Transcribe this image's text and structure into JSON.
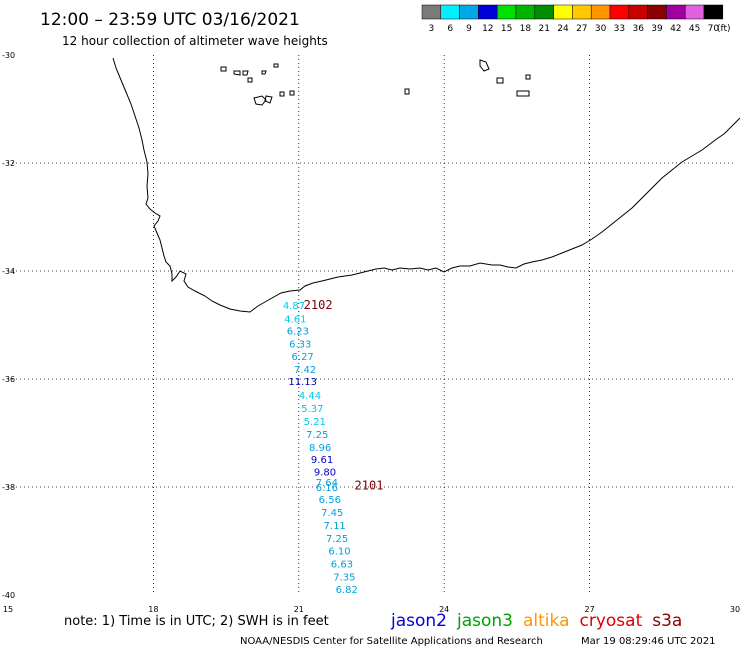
{
  "header": {
    "title": "12:00 – 23:59 UTC 03/16/2021",
    "subtitle": "12 hour collection of altimeter wave heights"
  },
  "legend": {
    "unit": "(ft)",
    "bins": [
      {
        "label": "3",
        "color": "#7a7a7a"
      },
      {
        "label": "6",
        "color": "#00f0ff"
      },
      {
        "label": "9",
        "color": "#00a8e8"
      },
      {
        "label": "12",
        "color": "#0000d8"
      },
      {
        "label": "15",
        "color": "#00e000"
      },
      {
        "label": "18",
        "color": "#00b400"
      },
      {
        "label": "21",
        "color": "#008c00"
      },
      {
        "label": "24",
        "color": "#ffff00"
      },
      {
        "label": "27",
        "color": "#ffc800"
      },
      {
        "label": "30",
        "color": "#ff9600"
      },
      {
        "label": "33",
        "color": "#ff0000"
      },
      {
        "label": "36",
        "color": "#c80000"
      },
      {
        "label": "39",
        "color": "#8c0000"
      },
      {
        "label": "42",
        "color": "#a000a0"
      },
      {
        "label": "45",
        "color": "#e060e0"
      },
      {
        "label": "70",
        "color": "#000000"
      }
    ]
  },
  "axes": {
    "lon_min": 15,
    "lon_max": 30,
    "lat_min": -40,
    "lat_max": -30,
    "lon_ticks": [
      {
        "v": 15,
        "label": "15"
      },
      {
        "v": 18,
        "label": "18"
      },
      {
        "v": 21,
        "label": "21"
      },
      {
        "v": 24,
        "label": "24"
      },
      {
        "v": 27,
        "label": "27"
      },
      {
        "v": 30,
        "label": "30"
      }
    ],
    "lat_ticks": [
      {
        "v": -30,
        "label": "-30"
      },
      {
        "v": -32,
        "label": "-32"
      },
      {
        "v": -34,
        "label": "-34"
      },
      {
        "v": -36,
        "label": "-36"
      },
      {
        "v": -38,
        "label": "-38"
      },
      {
        "v": -40,
        "label": "-40"
      }
    ],
    "grid": "dotted"
  },
  "tracks": [
    {
      "label": "2102",
      "lon": 21.1,
      "lat": -34.7,
      "color": "#7a0000"
    },
    {
      "label": "2101",
      "lon": 22.15,
      "lat": -38.05,
      "color": "#7a0000"
    }
  ],
  "observations": [
    {
      "value": "4.87",
      "lon": 20.9,
      "lat": -34.7,
      "color": "#00c8e8"
    },
    {
      "value": "4.61",
      "lon": 20.93,
      "lat": -34.95,
      "color": "#00c8e8"
    },
    {
      "value": "6.23",
      "lon": 20.98,
      "lat": -35.18,
      "color": "#00a0e0"
    },
    {
      "value": "6.33",
      "lon": 21.03,
      "lat": -35.42,
      "color": "#00a0e0"
    },
    {
      "value": "6.27",
      "lon": 21.08,
      "lat": -35.65,
      "color": "#00a0e0"
    },
    {
      "value": "7.42",
      "lon": 21.13,
      "lat": -35.89,
      "color": "#00a0e0"
    },
    {
      "value": "11.13",
      "lon": 21.08,
      "lat": -36.11,
      "color": "#0000c8"
    },
    {
      "value": "4.44",
      "lon": 21.23,
      "lat": -36.37,
      "color": "#00c8e8"
    },
    {
      "value": "5.37",
      "lon": 21.28,
      "lat": -36.61,
      "color": "#00c8e8"
    },
    {
      "value": "5.21",
      "lon": 21.33,
      "lat": -36.85,
      "color": "#00c8e8"
    },
    {
      "value": "7.25",
      "lon": 21.38,
      "lat": -37.09,
      "color": "#00a0e0"
    },
    {
      "value": "8.96",
      "lon": 21.44,
      "lat": -37.33,
      "color": "#00a0e0"
    },
    {
      "value": "9.61",
      "lon": 21.48,
      "lat": -37.56,
      "color": "#0000c8"
    },
    {
      "value": "9.80",
      "lon": 21.54,
      "lat": -37.79,
      "color": "#0000c8"
    },
    {
      "value": "7.64",
      "lon": 21.58,
      "lat": -37.98,
      "color": "#00a0e0"
    },
    {
      "value": "6.16",
      "lon": 21.58,
      "lat": -38.07,
      "color": "#00a0e0"
    },
    {
      "value": "6.56",
      "lon": 21.64,
      "lat": -38.3,
      "color": "#00a0e0"
    },
    {
      "value": "7.45",
      "lon": 21.69,
      "lat": -38.54,
      "color": "#00a0e0"
    },
    {
      "value": "7.11",
      "lon": 21.74,
      "lat": -38.78,
      "color": "#00a0e0"
    },
    {
      "value": "7.25",
      "lon": 21.79,
      "lat": -39.02,
      "color": "#00a0e0"
    },
    {
      "value": "6.10",
      "lon": 21.84,
      "lat": -39.25,
      "color": "#00a0e0"
    },
    {
      "value": "6.63",
      "lon": 21.89,
      "lat": -39.49,
      "color": "#00a0e0"
    },
    {
      "value": "7.35",
      "lon": 21.94,
      "lat": -39.73,
      "color": "#00a0e0"
    },
    {
      "value": "6.82",
      "lon": 21.99,
      "lat": -39.96,
      "color": "#00a0e0"
    }
  ],
  "footer": {
    "note": "note: 1) Time is in UTC; 2) SWH is in feet",
    "satellites": [
      {
        "name": "jason2",
        "color": "#0000e0"
      },
      {
        "name": "jason3",
        "color": "#00a000"
      },
      {
        "name": "altika",
        "color": "#ff9600"
      },
      {
        "name": "cryosat",
        "color": "#e00000"
      },
      {
        "name": "s3a",
        "color": "#8c0000"
      }
    ],
    "credit": "NOAA/NESDIS Center for Satellite Applications and Research",
    "timestamp": "Mar 19 08:29:46 UTC 2021"
  }
}
